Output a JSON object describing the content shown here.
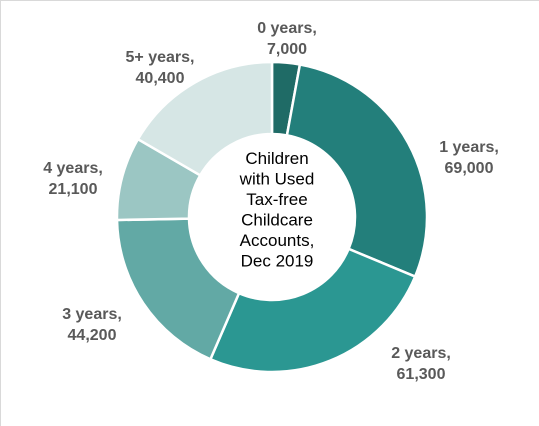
{
  "chart_data": {
    "type": "pie",
    "title": "Children with Used Tax-free Childcare Accounts, Dec 2019",
    "title_lines": [
      "Children",
      "with Used",
      "Tax-free",
      "Childcare",
      "Accounts,",
      "Dec 2019"
    ],
    "donut": true,
    "categories": [
      "0 years",
      "1 years",
      "2 years",
      "3 years",
      "4 years",
      "5+ years"
    ],
    "values": [
      7000,
      69000,
      61300,
      44200,
      21100,
      40400
    ],
    "labels": [
      {
        "category": "0 years,",
        "value": "7,000"
      },
      {
        "category": "1 years,",
        "value": "69,000"
      },
      {
        "category": "2 years,",
        "value": "61,300"
      },
      {
        "category": "3 years,",
        "value": "44,200"
      },
      {
        "category": "4 years,",
        "value": "21,100"
      },
      {
        "category": "5+ years,",
        "value": "40,400"
      }
    ],
    "colors": [
      "#1f6b66",
      "#237f7b",
      "#2b9792",
      "#62a9a5",
      "#9bc6c3",
      "#d6e6e5"
    ]
  }
}
